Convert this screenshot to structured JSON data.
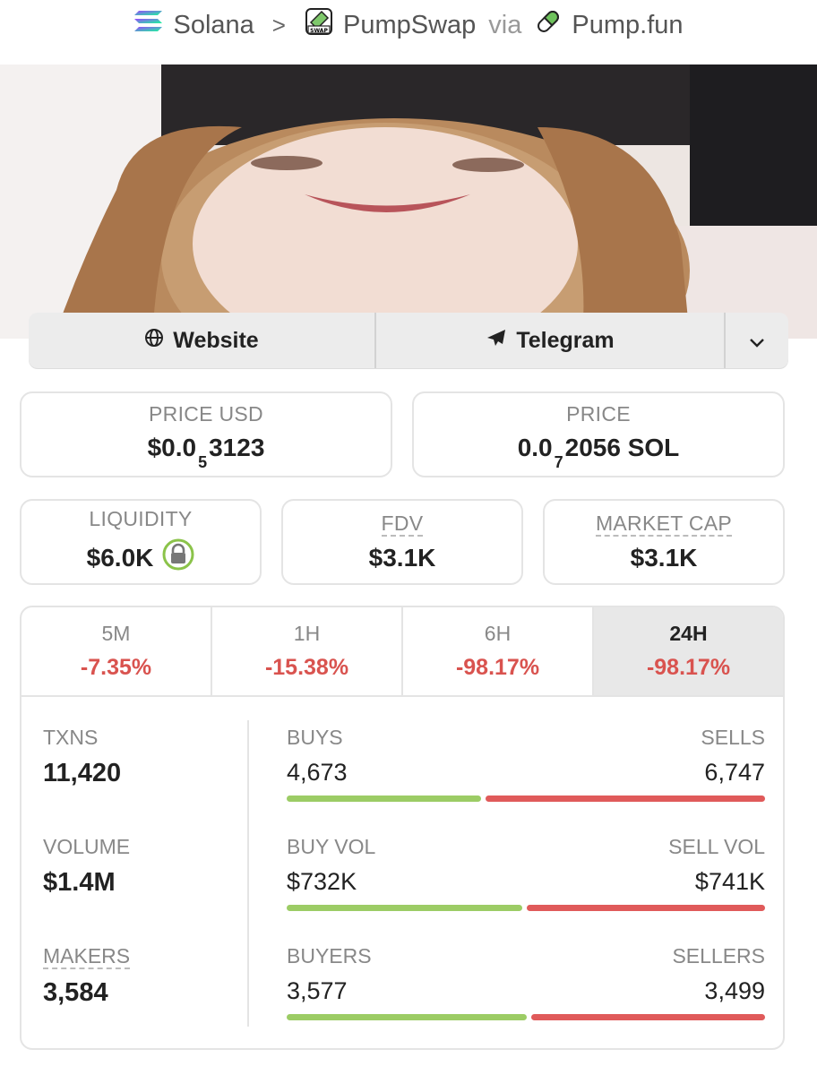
{
  "breadcrumb": {
    "chain": "Solana",
    "separator": ">",
    "dex": "PumpSwap",
    "via": "via",
    "launchpad": "Pump.fun"
  },
  "links": {
    "website": "Website",
    "telegram": "Telegram"
  },
  "price_usd": {
    "label": "PRICE USD",
    "prefix": "$0.0",
    "zeros": "5",
    "digits": "3123"
  },
  "price_native": {
    "label": "PRICE",
    "prefix": "0.0",
    "zeros": "7",
    "digits": "2056 SOL"
  },
  "liquidity": {
    "label": "LIQUIDITY",
    "value": "$6.0K"
  },
  "fdv": {
    "label": "FDV",
    "value": "$3.1K"
  },
  "market_cap": {
    "label": "MARKET CAP",
    "value": "$3.1K"
  },
  "tabs": [
    {
      "label": "5M",
      "value": "-7.35%"
    },
    {
      "label": "1H",
      "value": "-15.38%"
    },
    {
      "label": "6H",
      "value": "-98.17%"
    },
    {
      "label": "24H",
      "value": "-98.17%"
    }
  ],
  "active_tab": "24H",
  "stats": {
    "txns": {
      "label": "TXNS",
      "value": "11,420"
    },
    "volume": {
      "label": "VOLUME",
      "value": "$1.4M"
    },
    "makers": {
      "label": "MAKERS",
      "value": "3,584"
    }
  },
  "rows": {
    "txns": {
      "left_label": "BUYS",
      "right_label": "SELLS",
      "left_value": "4,673",
      "right_value": "6,747",
      "buy_fraction": 0.41
    },
    "volume": {
      "left_label": "BUY VOL",
      "right_label": "SELL VOL",
      "left_value": "$732K",
      "right_value": "$741K",
      "buy_fraction": 0.497
    },
    "makers": {
      "left_label": "BUYERS",
      "right_label": "SELLERS",
      "left_value": "3,577",
      "right_value": "3,499",
      "buy_fraction": 0.506
    }
  },
  "colors": {
    "buy": "#9ccc65",
    "sell": "#e05a5a",
    "negative": "#d9534f",
    "lock": "#8bc34a"
  },
  "icons": [
    "solana-icon",
    "pumpswap-icon",
    "pill-icon",
    "globe-icon",
    "send-icon",
    "chevron-down-icon",
    "lock-icon"
  ]
}
